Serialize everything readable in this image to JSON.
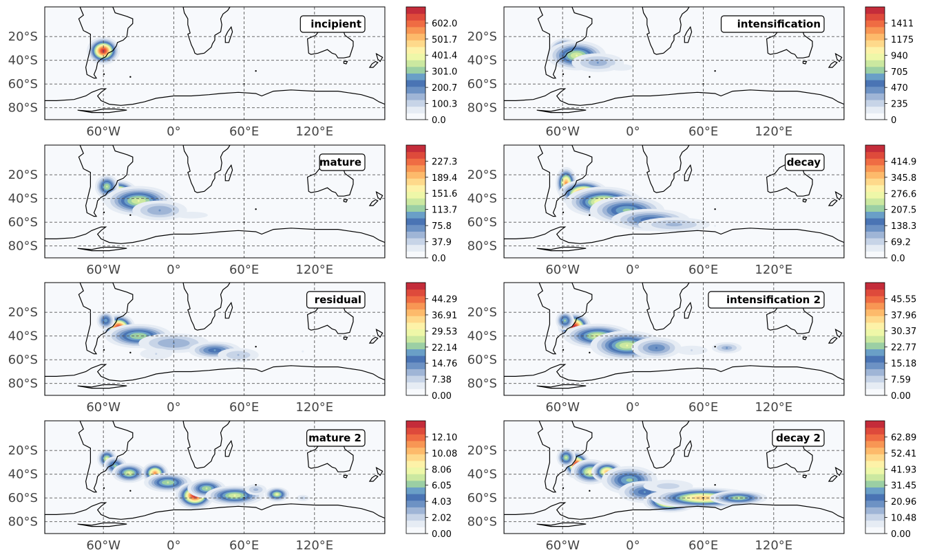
{
  "chart_data": {
    "type": "heatmap",
    "description_kind": "kernel density maps of cyclone stages over the South Atlantic / Southern Ocean",
    "grid": true,
    "colormap": [
      "#f7f9fc",
      "#e6ecf4",
      "#c7d4e7",
      "#9fb5d6",
      "#6d92c4",
      "#4a74b4",
      "#6a9fc7",
      "#9bcfa4",
      "#cbe8a0",
      "#eef7a8",
      "#fdf2a8",
      "#fed98b",
      "#fdba6b",
      "#f89654",
      "#ef6c43",
      "#de4a3b",
      "#c42c3a"
    ],
    "lon_range": [
      -110,
      180
    ],
    "lat_range": [
      -90,
      5
    ],
    "yticks": [
      "20°S",
      "40°S",
      "60°S",
      "80°S"
    ],
    "xticks": [
      "60°W",
      "0°",
      "60°E",
      "120°E"
    ],
    "panels": [
      {
        "label": "incipient",
        "colorbar_ticks": [
          "0.0",
          "100.3",
          "200.7",
          "301.0",
          "401.4",
          "501.7",
          "602.0"
        ],
        "vmax": 702,
        "blobs": [
          [
            -60,
            -32,
            6,
            5,
            1.0
          ]
        ]
      },
      {
        "label": "intensification",
        "colorbar_ticks": [
          "0",
          "235",
          "470",
          "705",
          "940",
          "1175",
          "1411"
        ],
        "vmax": 1646,
        "blobs": [
          [
            -58,
            -33,
            6,
            5,
            1.0
          ],
          [
            -48,
            -36,
            12,
            6,
            0.55
          ],
          [
            -30,
            -42,
            14,
            5,
            0.22
          ],
          [
            -10,
            -46,
            14,
            4,
            0.08
          ]
        ]
      },
      {
        "label": "mature",
        "colorbar_ticks": [
          "0.0",
          "37.9",
          "75.8",
          "113.7",
          "151.6",
          "189.4",
          "227.3"
        ],
        "vmax": 265,
        "blobs": [
          [
            -47,
            -36,
            7,
            5,
            1.0
          ],
          [
            -57,
            -30,
            5,
            5,
            0.5
          ],
          [
            -30,
            -42,
            14,
            6,
            0.55
          ],
          [
            -12,
            -50,
            14,
            5,
            0.25
          ],
          [
            15,
            -54,
            20,
            4,
            0.08
          ]
        ]
      },
      {
        "label": "decay",
        "colorbar_ticks": [
          "0.0",
          "69.2",
          "138.3",
          "207.5",
          "276.6",
          "345.8",
          "414.9"
        ],
        "vmax": 484,
        "blobs": [
          [
            -57,
            -27,
            4,
            6,
            0.8
          ],
          [
            -42,
            -36,
            9,
            5,
            1.0
          ],
          [
            -25,
            -43,
            15,
            6,
            0.65
          ],
          [
            -5,
            -50,
            16,
            6,
            0.45
          ],
          [
            15,
            -58,
            18,
            5,
            0.35
          ],
          [
            35,
            -62,
            20,
            4,
            0.2
          ],
          [
            70,
            -63,
            18,
            3,
            0.06
          ]
        ]
      },
      {
        "label": "residual",
        "colorbar_ticks": [
          "0.00",
          "7.38",
          "14.76",
          "22.14",
          "29.53",
          "36.91",
          "44.29"
        ],
        "vmax": 51.7,
        "blobs": [
          [
            -47,
            -33,
            6,
            5,
            1.0
          ],
          [
            -58,
            -27,
            4,
            4,
            0.4
          ],
          [
            -30,
            -40,
            14,
            5,
            0.5
          ],
          [
            0,
            -46,
            18,
            5,
            0.25
          ],
          [
            35,
            -52,
            12,
            4,
            0.35
          ],
          [
            55,
            -56,
            12,
            4,
            0.18
          ],
          [
            -15,
            -55,
            12,
            4,
            0.12
          ],
          [
            110,
            -53,
            20,
            4,
            0.06
          ]
        ]
      },
      {
        "label": "intensification 2",
        "colorbar_ticks": [
          "0.00",
          "7.59",
          "15.18",
          "22.77",
          "30.37",
          "37.96",
          "45.55"
        ],
        "vmax": 53.1,
        "blobs": [
          [
            -50,
            -32,
            6,
            5,
            1.0
          ],
          [
            -58,
            -27,
            4,
            4,
            0.45
          ],
          [
            -30,
            -40,
            14,
            5,
            0.55
          ],
          [
            -5,
            -48,
            15,
            6,
            0.55
          ],
          [
            20,
            -50,
            12,
            5,
            0.3
          ],
          [
            80,
            -50,
            8,
            3,
            0.22
          ],
          [
            50,
            -52,
            14,
            4,
            0.1
          ]
        ]
      },
      {
        "label": "mature 2",
        "colorbar_ticks": [
          "0.00",
          "2.02",
          "4.03",
          "6.05",
          "8.06",
          "10.08",
          "12.10"
        ],
        "vmax": 14.1,
        "blobs": [
          [
            -57,
            -27,
            4,
            4,
            0.55
          ],
          [
            -50,
            -33,
            5,
            4,
            0.45
          ],
          [
            -38,
            -39,
            7,
            4,
            0.55
          ],
          [
            -16,
            -39,
            5,
            4,
            0.8
          ],
          [
            -5,
            -47,
            10,
            4,
            0.5
          ],
          [
            18,
            -58,
            7,
            5,
            1.0
          ],
          [
            28,
            -52,
            8,
            4,
            0.5
          ],
          [
            52,
            -58,
            12,
            4,
            0.55
          ],
          [
            88,
            -57,
            5,
            3,
            0.55
          ],
          [
            110,
            -60,
            4,
            2,
            0.15
          ],
          [
            70,
            -53,
            6,
            3,
            0.2
          ]
        ]
      },
      {
        "label": "decay 2",
        "colorbar_ticks": [
          "0.00",
          "10.48",
          "20.96",
          "31.45",
          "41.93",
          "52.41",
          "62.89"
        ],
        "vmax": 73.4,
        "blobs": [
          [
            -48,
            -32,
            5,
            5,
            1.0
          ],
          [
            -57,
            -26,
            4,
            4,
            0.5
          ],
          [
            -36,
            -38,
            8,
            5,
            0.6
          ],
          [
            -22,
            -38,
            6,
            4,
            0.75
          ],
          [
            -3,
            -45,
            12,
            6,
            0.45
          ],
          [
            10,
            -55,
            12,
            5,
            0.35
          ],
          [
            32,
            -63,
            10,
            4,
            0.95
          ],
          [
            60,
            -60,
            20,
            4,
            0.75
          ],
          [
            90,
            -60,
            12,
            3,
            0.5
          ],
          [
            30,
            -50,
            16,
            4,
            0.15
          ]
        ]
      }
    ]
  }
}
